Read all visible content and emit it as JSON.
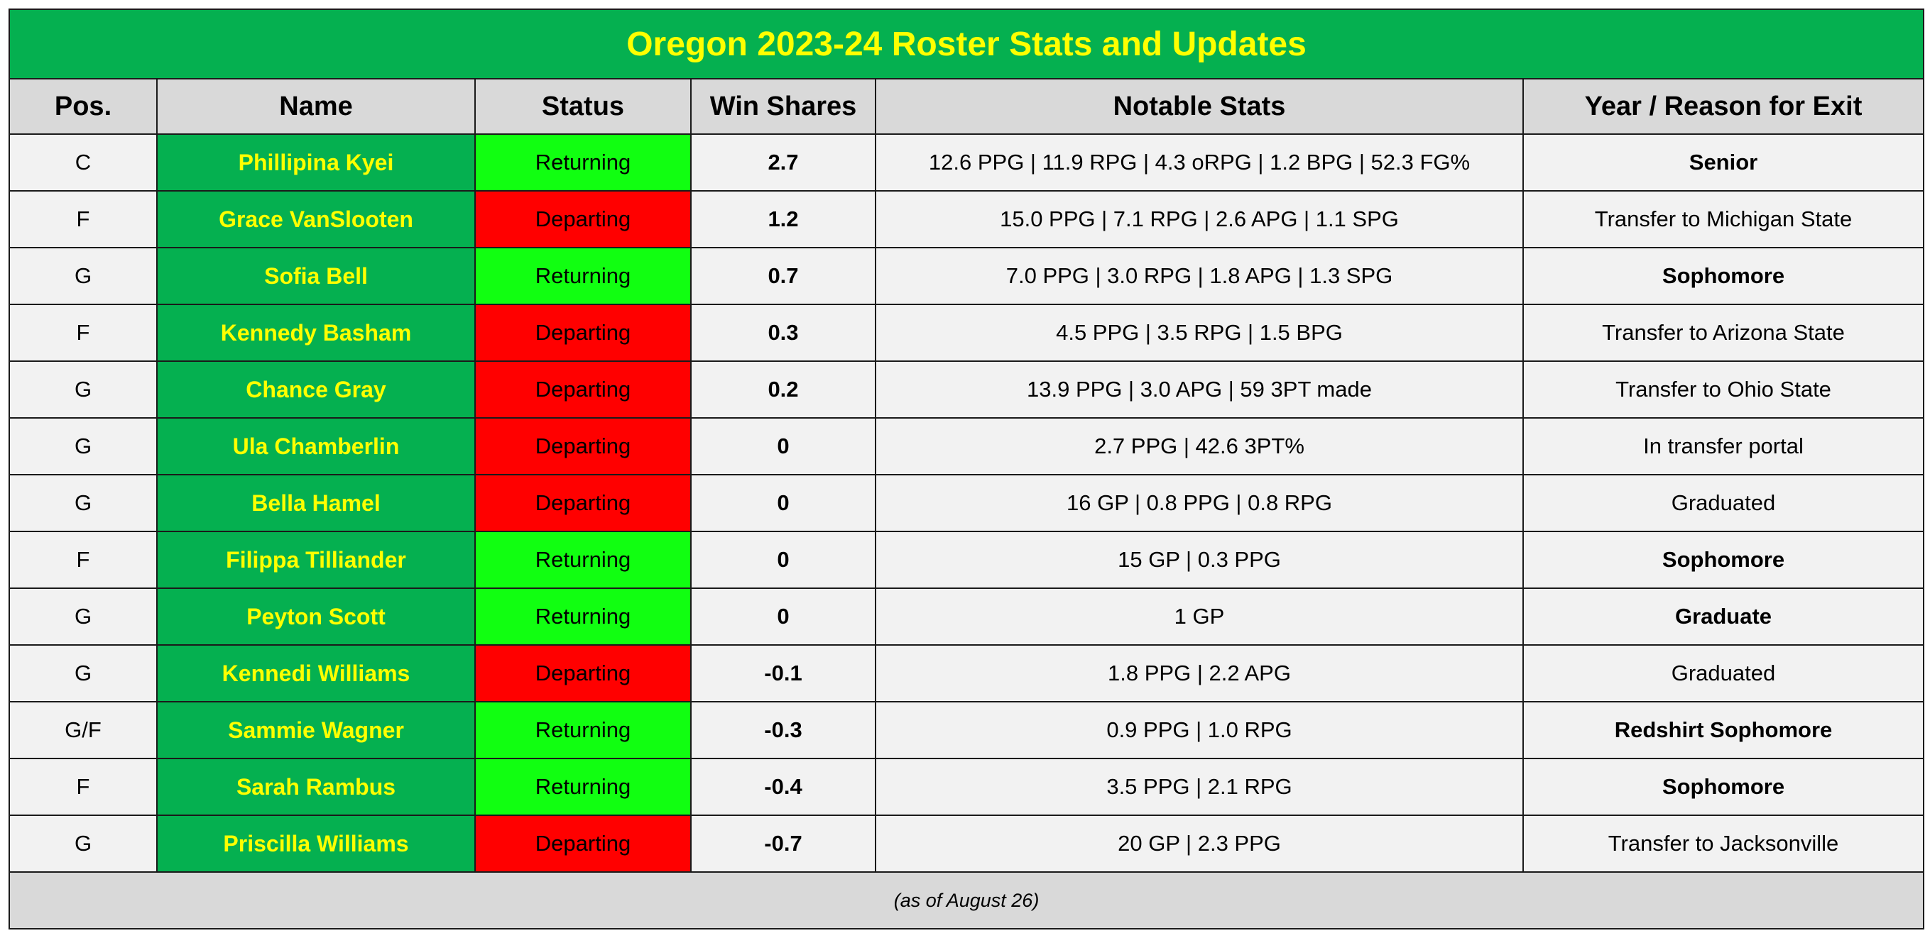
{
  "title": "Oregon 2023-24 Roster Stats and Updates",
  "columns": [
    "Pos.",
    "Name",
    "Status",
    "Win Shares",
    "Notable Stats",
    "Year / Reason for Exit"
  ],
  "rows": [
    {
      "pos": "C",
      "name": "Phillipina Kyei",
      "status": "Returning",
      "win_shares": "2.7",
      "stats": "12.6 PPG | 11.9 RPG | 4.3 oRPG | 1.2 BPG | 52.3 FG%",
      "exit": "Senior",
      "exit_bold": true
    },
    {
      "pos": "F",
      "name": "Grace VanSlooten",
      "status": "Departing",
      "win_shares": "1.2",
      "stats": "15.0 PPG | 7.1 RPG | 2.6 APG | 1.1 SPG",
      "exit": "Transfer to Michigan State",
      "exit_bold": false
    },
    {
      "pos": "G",
      "name": "Sofia Bell",
      "status": "Returning",
      "win_shares": "0.7",
      "stats": "7.0 PPG | 3.0 RPG | 1.8 APG | 1.3 SPG",
      "exit": "Sophomore",
      "exit_bold": true
    },
    {
      "pos": "F",
      "name": "Kennedy Basham",
      "status": "Departing",
      "win_shares": "0.3",
      "stats": "4.5 PPG | 3.5 RPG | 1.5 BPG",
      "exit": "Transfer to Arizona State",
      "exit_bold": false
    },
    {
      "pos": "G",
      "name": "Chance Gray",
      "status": "Departing",
      "win_shares": "0.2",
      "stats": "13.9 PPG | 3.0 APG | 59 3PT made",
      "exit": "Transfer to Ohio State",
      "exit_bold": false
    },
    {
      "pos": "G",
      "name": "Ula Chamberlin",
      "status": "Departing",
      "win_shares": "0",
      "stats": "2.7 PPG | 42.6 3PT%",
      "exit": "In transfer portal",
      "exit_bold": false
    },
    {
      "pos": "G",
      "name": "Bella Hamel",
      "status": "Departing",
      "win_shares": "0",
      "stats": "16 GP | 0.8 PPG | 0.8 RPG",
      "exit": "Graduated",
      "exit_bold": false
    },
    {
      "pos": "F",
      "name": "Filippa Tilliander",
      "status": "Returning",
      "win_shares": "0",
      "stats": "15 GP | 0.3 PPG",
      "exit": "Sophomore",
      "exit_bold": true
    },
    {
      "pos": "G",
      "name": "Peyton Scott",
      "status": "Returning",
      "win_shares": "0",
      "stats": "1 GP",
      "exit": "Graduate",
      "exit_bold": true
    },
    {
      "pos": "G",
      "name": "Kennedi Williams",
      "status": "Departing",
      "win_shares": "-0.1",
      "stats": "1.8 PPG | 2.2 APG",
      "exit": "Graduated",
      "exit_bold": false
    },
    {
      "pos": "G/F",
      "name": "Sammie Wagner",
      "status": "Returning",
      "win_shares": "-0.3",
      "stats": "0.9 PPG | 1.0 RPG",
      "exit": "Redshirt Sophomore",
      "exit_bold": true
    },
    {
      "pos": "F",
      "name": "Sarah Rambus",
      "status": "Returning",
      "win_shares": "-0.4",
      "stats": "3.5 PPG | 2.1 RPG",
      "exit": "Sophomore",
      "exit_bold": true
    },
    {
      "pos": "G",
      "name": "Priscilla Williams",
      "status": "Departing",
      "win_shares": "-0.7",
      "stats": "20 GP | 2.3 PPG",
      "exit": "Transfer to Jacksonville",
      "exit_bold": false
    }
  ],
  "footer": "(as of August 26)",
  "colors": {
    "title_bg": "#05b050",
    "title_text": "#ffff00",
    "returning": "#11ff11",
    "departing": "#ff0000",
    "header_bg": "#d9d9d9",
    "row_bg": "#f2f2f2"
  }
}
